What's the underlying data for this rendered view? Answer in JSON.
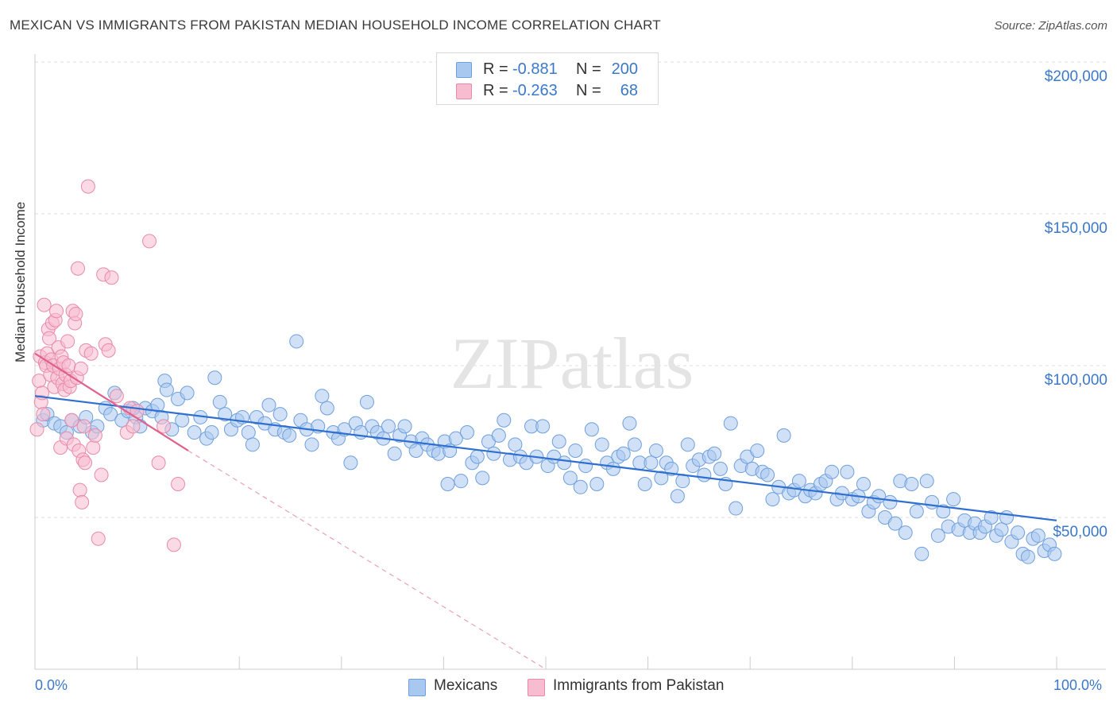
{
  "title": "MEXICAN VS IMMIGRANTS FROM PAKISTAN MEDIAN HOUSEHOLD INCOME CORRELATION CHART",
  "source": "Source: ZipAtlas.com",
  "watermark": "ZIPatlas",
  "legend_stats": {
    "rows": [
      {
        "r_label": "R =",
        "r_value": "-0.881",
        "n_label": "N =",
        "n_value": "200",
        "color": "#a9c8f0",
        "stroke": "#6f9fdc"
      },
      {
        "r_label": "R =",
        "r_value": "-0.263",
        "n_label": "N =",
        "n_value": "68",
        "color": "#f7bcd0",
        "stroke": "#e88aa8"
      }
    ]
  },
  "bottom_legend": [
    {
      "label": "Mexicans",
      "color": "#a9c8f0",
      "stroke": "#6f9fdc"
    },
    {
      "label": "Immigrants from Pakistan",
      "color": "#f7bcd0",
      "stroke": "#e88aa8"
    }
  ],
  "axes": {
    "x_min_label": "0.0%",
    "x_max_label": "100.0%",
    "y_ticks": [
      "$200,000",
      "$150,000",
      "$100,000",
      "$50,000"
    ]
  },
  "chart_data": {
    "type": "scatter",
    "title": "MEXICAN VS IMMIGRANTS FROM PAKISTAN MEDIAN HOUSEHOLD INCOME CORRELATION CHART",
    "xlabel": "",
    "ylabel": "Median Household Income",
    "xlim": [
      0,
      100
    ],
    "ylim": [
      0,
      205000
    ],
    "y_tick_values": [
      50000,
      100000,
      150000,
      200000
    ],
    "grid": "horizontal dashed",
    "legend_position": "top-center",
    "series": [
      {
        "name": "Mexicans",
        "color": "#6f9fdc",
        "fill": "#a9c8f0",
        "trend": {
          "x": [
            0,
            100
          ],
          "y": [
            90000,
            49000
          ]
        },
        "points": [
          [
            0.8,
            82000
          ],
          [
            1.2,
            84000
          ],
          [
            1.9,
            81000
          ],
          [
            2.5,
            80000
          ],
          [
            3.1,
            78000
          ],
          [
            3.6,
            82000
          ],
          [
            4.4,
            80000
          ],
          [
            5.0,
            83000
          ],
          [
            5.6,
            78000
          ],
          [
            6.1,
            80000
          ],
          [
            6.9,
            86000
          ],
          [
            7.4,
            84000
          ],
          [
            7.8,
            91000
          ],
          [
            8.5,
            82000
          ],
          [
            9.1,
            85000
          ],
          [
            9.9,
            83000
          ],
          [
            10.3,
            80000
          ],
          [
            10.8,
            86000
          ],
          [
            11.5,
            85000
          ],
          [
            12.0,
            87000
          ],
          [
            12.4,
            83000
          ],
          [
            12.7,
            95000
          ],
          [
            13.4,
            79000
          ],
          [
            14.0,
            89000
          ],
          [
            14.4,
            82000
          ],
          [
            14.9,
            91000
          ],
          [
            15.6,
            78000
          ],
          [
            16.2,
            83000
          ],
          [
            16.8,
            76000
          ],
          [
            17.3,
            78000
          ],
          [
            17.6,
            96000
          ],
          [
            18.1,
            88000
          ],
          [
            18.6,
            84000
          ],
          [
            19.2,
            79000
          ],
          [
            19.8,
            82000
          ],
          [
            20.3,
            83000
          ],
          [
            20.9,
            78000
          ],
          [
            21.3,
            74000
          ],
          [
            21.7,
            83000
          ],
          [
            22.5,
            81000
          ],
          [
            22.9,
            87000
          ],
          [
            23.5,
            79000
          ],
          [
            24.0,
            84000
          ],
          [
            24.4,
            78000
          ],
          [
            24.9,
            77000
          ],
          [
            25.6,
            108000
          ],
          [
            26.0,
            82000
          ],
          [
            26.6,
            79000
          ],
          [
            27.1,
            74000
          ],
          [
            27.7,
            80000
          ],
          [
            28.1,
            90000
          ],
          [
            28.6,
            86000
          ],
          [
            29.2,
            78000
          ],
          [
            29.7,
            76000
          ],
          [
            30.3,
            79000
          ],
          [
            30.9,
            68000
          ],
          [
            31.4,
            81000
          ],
          [
            31.9,
            78000
          ],
          [
            32.5,
            88000
          ],
          [
            33.0,
            80000
          ],
          [
            33.5,
            78000
          ],
          [
            34.1,
            76000
          ],
          [
            34.6,
            80000
          ],
          [
            35.2,
            71000
          ],
          [
            35.7,
            77000
          ],
          [
            36.2,
            80000
          ],
          [
            36.8,
            75000
          ],
          [
            37.3,
            72000
          ],
          [
            37.9,
            76000
          ],
          [
            38.4,
            74000
          ],
          [
            39.0,
            72000
          ],
          [
            39.5,
            71000
          ],
          [
            40.1,
            75000
          ],
          [
            40.6,
            72000
          ],
          [
            41.2,
            76000
          ],
          [
            41.7,
            62000
          ],
          [
            42.3,
            78000
          ],
          [
            42.8,
            68000
          ],
          [
            43.3,
            70000
          ],
          [
            43.8,
            63000
          ],
          [
            44.4,
            75000
          ],
          [
            44.9,
            71000
          ],
          [
            45.4,
            77000
          ],
          [
            45.9,
            82000
          ],
          [
            46.5,
            69000
          ],
          [
            47.0,
            74000
          ],
          [
            47.5,
            70000
          ],
          [
            48.1,
            68000
          ],
          [
            48.6,
            80000
          ],
          [
            49.1,
            70000
          ],
          [
            49.7,
            80000
          ],
          [
            50.2,
            67000
          ],
          [
            50.8,
            70000
          ],
          [
            51.3,
            75000
          ],
          [
            51.8,
            68000
          ],
          [
            52.4,
            63000
          ],
          [
            52.9,
            72000
          ],
          [
            53.4,
            60000
          ],
          [
            53.9,
            67000
          ],
          [
            54.5,
            79000
          ],
          [
            55.0,
            61000
          ],
          [
            55.5,
            74000
          ],
          [
            56.0,
            68000
          ],
          [
            56.6,
            66000
          ],
          [
            57.1,
            70000
          ],
          [
            57.6,
            71000
          ],
          [
            58.2,
            81000
          ],
          [
            58.7,
            74000
          ],
          [
            59.2,
            68000
          ],
          [
            59.7,
            61000
          ],
          [
            60.3,
            68000
          ],
          [
            60.8,
            72000
          ],
          [
            61.3,
            63000
          ],
          [
            61.8,
            68000
          ],
          [
            62.3,
            66000
          ],
          [
            62.9,
            57000
          ],
          [
            63.4,
            62000
          ],
          [
            63.9,
            74000
          ],
          [
            64.4,
            67000
          ],
          [
            65.0,
            69000
          ],
          [
            65.5,
            64000
          ],
          [
            66.0,
            70000
          ],
          [
            66.5,
            71000
          ],
          [
            67.1,
            66000
          ],
          [
            67.6,
            61000
          ],
          [
            68.1,
            81000
          ],
          [
            68.6,
            53000
          ],
          [
            69.1,
            67000
          ],
          [
            69.7,
            70000
          ],
          [
            70.2,
            66000
          ],
          [
            70.7,
            72000
          ],
          [
            71.2,
            65000
          ],
          [
            71.7,
            64000
          ],
          [
            72.2,
            56000
          ],
          [
            72.8,
            60000
          ],
          [
            73.3,
            77000
          ],
          [
            73.8,
            58000
          ],
          [
            74.3,
            59000
          ],
          [
            74.8,
            62000
          ],
          [
            75.4,
            57000
          ],
          [
            75.9,
            59000
          ],
          [
            76.4,
            58000
          ],
          [
            76.9,
            61000
          ],
          [
            77.4,
            62000
          ],
          [
            78.0,
            65000
          ],
          [
            78.5,
            56000
          ],
          [
            79.0,
            58000
          ],
          [
            79.5,
            65000
          ],
          [
            80.0,
            56000
          ],
          [
            80.6,
            57000
          ],
          [
            81.1,
            61000
          ],
          [
            81.6,
            52000
          ],
          [
            82.1,
            55000
          ],
          [
            82.6,
            57000
          ],
          [
            83.2,
            50000
          ],
          [
            83.7,
            55000
          ],
          [
            84.2,
            48000
          ],
          [
            84.7,
            62000
          ],
          [
            85.2,
            45000
          ],
          [
            85.8,
            61000
          ],
          [
            86.3,
            52000
          ],
          [
            86.8,
            38000
          ],
          [
            87.3,
            62000
          ],
          [
            87.8,
            55000
          ],
          [
            88.4,
            44000
          ],
          [
            88.9,
            52000
          ],
          [
            89.4,
            47000
          ],
          [
            89.9,
            56000
          ],
          [
            90.4,
            46000
          ],
          [
            91.0,
            49000
          ],
          [
            91.5,
            45000
          ],
          [
            92.0,
            48000
          ],
          [
            92.5,
            45000
          ],
          [
            93.0,
            47000
          ],
          [
            93.6,
            50000
          ],
          [
            94.1,
            44000
          ],
          [
            94.6,
            46000
          ],
          [
            95.1,
            50000
          ],
          [
            95.6,
            42000
          ],
          [
            96.2,
            45000
          ],
          [
            96.7,
            38000
          ],
          [
            97.2,
            37000
          ],
          [
            97.7,
            43000
          ],
          [
            98.2,
            44000
          ],
          [
            98.8,
            39000
          ],
          [
            99.3,
            41000
          ],
          [
            99.8,
            38000
          ],
          [
            9.6,
            86000
          ],
          [
            12.9,
            92000
          ],
          [
            40.4,
            61000
          ]
        ]
      },
      {
        "name": "Immigrants from Pakistan",
        "color": "#e88aa8",
        "fill": "#f7bcd0",
        "trend": {
          "x": [
            0,
            15
          ],
          "y": [
            104000,
            72000
          ]
        },
        "trend_extension": {
          "x": [
            15,
            50
          ],
          "y": [
            72000,
            0
          ]
        },
        "points": [
          [
            0.2,
            79000
          ],
          [
            0.4,
            95000
          ],
          [
            0.5,
            103000
          ],
          [
            0.6,
            88000
          ],
          [
            0.7,
            91000
          ],
          [
            0.8,
            84000
          ],
          [
            0.9,
            120000
          ],
          [
            1.0,
            101000
          ],
          [
            1.1,
            100000
          ],
          [
            1.2,
            104000
          ],
          [
            1.3,
            112000
          ],
          [
            1.4,
            109000
          ],
          [
            1.5,
            97000
          ],
          [
            1.6,
            102000
          ],
          [
            1.7,
            114000
          ],
          [
            1.8,
            100000
          ],
          [
            1.9,
            93000
          ],
          [
            2.0,
            115000
          ],
          [
            2.1,
            118000
          ],
          [
            2.2,
            96000
          ],
          [
            2.3,
            106000
          ],
          [
            2.4,
            99000
          ],
          [
            2.5,
            73000
          ],
          [
            2.6,
            103000
          ],
          [
            2.7,
            94000
          ],
          [
            2.8,
            101000
          ],
          [
            2.9,
            92000
          ],
          [
            3.0,
            97000
          ],
          [
            3.1,
            76000
          ],
          [
            3.2,
            108000
          ],
          [
            3.3,
            100000
          ],
          [
            3.4,
            93000
          ],
          [
            3.5,
            95000
          ],
          [
            3.6,
            82000
          ],
          [
            3.7,
            118000
          ],
          [
            3.8,
            74000
          ],
          [
            3.9,
            114000
          ],
          [
            4.0,
            117000
          ],
          [
            4.1,
            96000
          ],
          [
            4.2,
            132000
          ],
          [
            4.3,
            72000
          ],
          [
            4.4,
            59000
          ],
          [
            4.5,
            99000
          ],
          [
            4.6,
            55000
          ],
          [
            4.7,
            69000
          ],
          [
            4.8,
            80000
          ],
          [
            4.9,
            68000
          ],
          [
            5.0,
            105000
          ],
          [
            5.2,
            159000
          ],
          [
            5.5,
            104000
          ],
          [
            5.7,
            73000
          ],
          [
            5.9,
            77000
          ],
          [
            6.2,
            43000
          ],
          [
            6.5,
            64000
          ],
          [
            6.7,
            130000
          ],
          [
            6.9,
            107000
          ],
          [
            7.2,
            105000
          ],
          [
            7.5,
            129000
          ],
          [
            8.0,
            90000
          ],
          [
            9.0,
            78000
          ],
          [
            9.3,
            86000
          ],
          [
            9.6,
            80000
          ],
          [
            10.0,
            85000
          ],
          [
            11.2,
            141000
          ],
          [
            12.1,
            68000
          ],
          [
            12.6,
            80000
          ],
          [
            13.6,
            41000
          ],
          [
            14.0,
            61000
          ]
        ]
      }
    ]
  }
}
